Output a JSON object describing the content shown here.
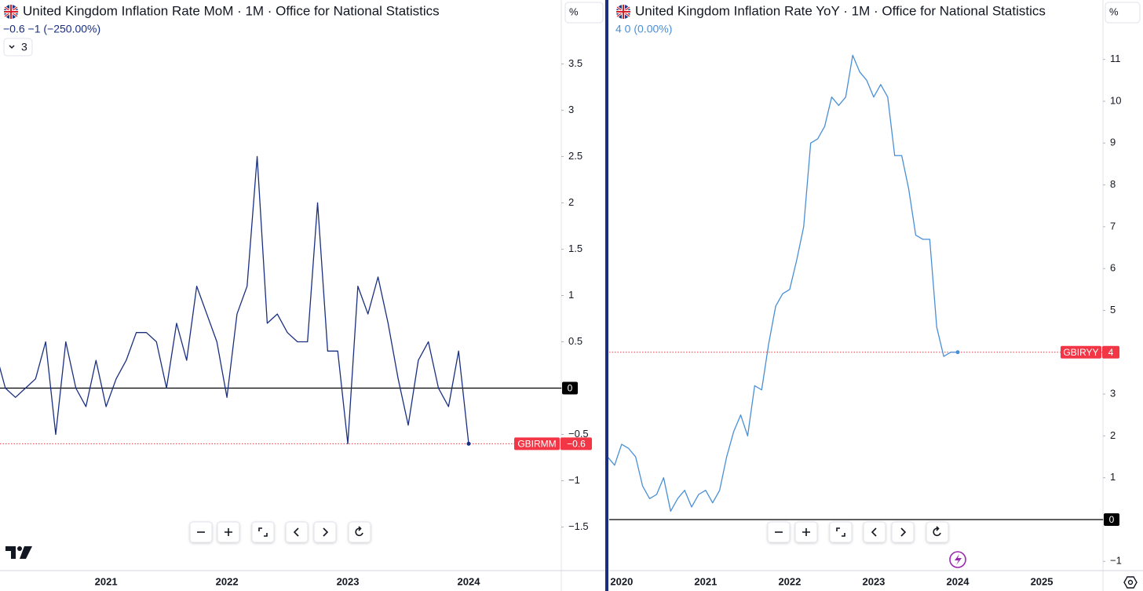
{
  "chart_data": [
    {
      "type": "line",
      "title": "United Kingdom Inflation Rate MoM · 1M · Office for National Statistics",
      "readout": "−0.6  −1 (−250.00%)",
      "indicators_count": 3,
      "unit": "%",
      "categories": [
        null,
        null,
        null,
        null,
        null,
        null,
        null,
        null,
        null,
        null,
        null,
        "2021",
        null,
        null,
        null,
        null,
        null,
        null,
        null,
        null,
        null,
        null,
        null,
        "2022",
        null,
        null,
        null,
        null,
        null,
        null,
        null,
        null,
        null,
        null,
        null,
        "2023",
        null,
        null,
        null,
        null,
        null,
        null,
        null,
        null,
        null,
        null,
        null,
        "2024"
      ],
      "series": [
        {
          "name": "GBIRMM",
          "color": "#1a2f80",
          "values": [
            0.4,
            0.0,
            -0.1,
            0.0,
            0.1,
            0.5,
            -0.5,
            0.5,
            0.0,
            -0.2,
            0.3,
            -0.2,
            0.1,
            0.3,
            0.6,
            0.6,
            0.5,
            0.0,
            0.7,
            0.3,
            1.1,
            0.8,
            0.5,
            -0.1,
            0.8,
            1.1,
            2.5,
            0.7,
            0.8,
            0.6,
            0.5,
            0.5,
            2.0,
            0.4,
            0.4,
            -0.6,
            1.1,
            0.8,
            1.2,
            0.7,
            0.1,
            -0.4,
            0.3,
            0.5,
            0.0,
            -0.2,
            0.4,
            -0.6
          ]
        }
      ],
      "ylim": [
        -1.97,
        4.19
      ],
      "yticks": [
        {
          "value": -1.5,
          "label": "−1.5"
        },
        {
          "value": -1,
          "label": "−1"
        },
        {
          "value": -0.5,
          "label": "−0.5"
        },
        0,
        0.5,
        1,
        1.5,
        2,
        2.5,
        3,
        3.5
      ],
      "zero_line": 0,
      "last_label": {
        "name": "GBIRMM",
        "value": -0.6,
        "label": "−0.6"
      }
    },
    {
      "type": "line",
      "title": "United Kingdom Inflation Rate YoY · 1M · Office for National Statistics",
      "readout": "4  0 (0.00%)",
      "unit": "%",
      "categories": [
        null,
        null,
        "2020",
        null,
        null,
        null,
        null,
        null,
        null,
        null,
        null,
        null,
        null,
        null,
        "2021",
        null,
        null,
        null,
        null,
        null,
        null,
        null,
        null,
        null,
        null,
        null,
        "2022",
        null,
        null,
        null,
        null,
        null,
        null,
        null,
        null,
        null,
        null,
        null,
        "2023",
        null,
        null,
        null,
        null,
        null,
        null,
        null,
        null,
        null,
        null,
        null,
        "2024",
        null,
        null,
        null,
        null,
        null,
        null,
        null,
        null,
        null,
        null,
        null,
        "2025"
      ],
      "series": [
        {
          "name": "GBIRYY",
          "color": "#4a8fd6",
          "values": [
            1.5,
            1.3,
            1.8,
            1.7,
            1.5,
            0.8,
            0.5,
            0.6,
            1.0,
            0.2,
            0.5,
            0.7,
            0.3,
            0.6,
            0.7,
            0.4,
            0.7,
            1.5,
            2.1,
            2.5,
            2.0,
            3.2,
            3.1,
            4.2,
            5.1,
            5.4,
            5.5,
            6.2,
            7.0,
            9.0,
            9.1,
            9.4,
            10.1,
            9.9,
            10.1,
            11.1,
            10.7,
            10.5,
            10.1,
            10.4,
            10.1,
            8.7,
            8.7,
            7.9,
            6.8,
            6.7,
            6.7,
            4.6,
            3.9,
            4.0,
            4.0,
            null,
            null,
            null,
            null,
            null,
            null,
            null,
            null,
            null,
            null,
            null,
            null
          ]
        }
      ],
      "ylim": [
        -1.22,
        12.42
      ],
      "yticks": [
        {
          "value": -1,
          "label": "−1"
        },
        0,
        1,
        2,
        3,
        4,
        5,
        6,
        7,
        8,
        9,
        10,
        11
      ],
      "zero_line": 0,
      "last_label": {
        "name": "GBIRYY",
        "value": 4
      }
    }
  ]
}
